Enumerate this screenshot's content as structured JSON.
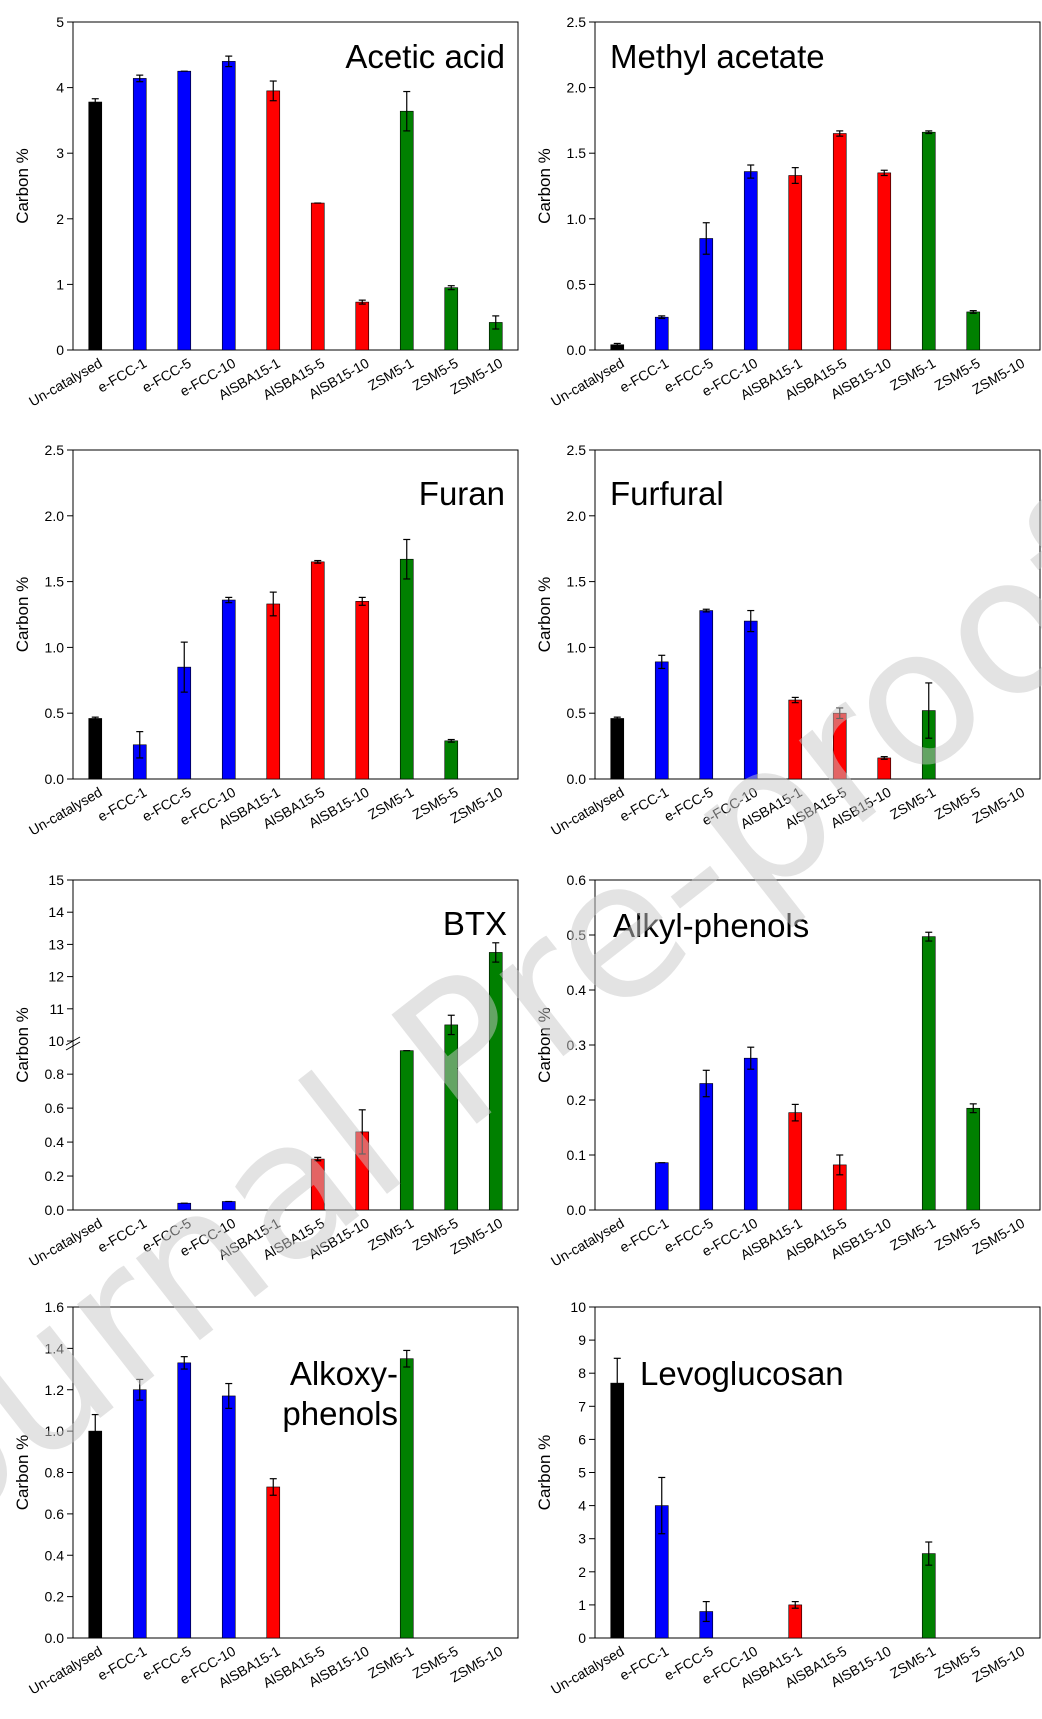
{
  "watermark": "Journal Pre-proof",
  "colors": {
    "uncatalysed": "#000000",
    "efcc": "#0000ff",
    "alsba": "#ff0000",
    "zsm5": "#008000"
  },
  "chart_data": [
    {
      "type": "bar",
      "title": "Acetic acid",
      "ylabel": "Carbon %",
      "categories": [
        "Un-catalysed",
        "e-FCC-1",
        "e-FCC-5",
        "e-FCC-10",
        "AlSBA15-1",
        "AlSBA15-5",
        "AlSB15-10",
        "ZSM5-1",
        "ZSM5-5",
        "ZSM5-10"
      ],
      "values": [
        3.78,
        4.14,
        4.25,
        4.4,
        3.95,
        2.24,
        0.73,
        3.64,
        0.95,
        0.42
      ],
      "errors": [
        0.05,
        0.05,
        0,
        0.08,
        0.15,
        0,
        0.03,
        0.3,
        0.03,
        0.1
      ],
      "ylim": [
        0,
        5
      ],
      "yticks": [
        "0",
        "1",
        "2",
        "3",
        "4",
        "5"
      ]
    },
    {
      "type": "bar",
      "title": "Methyl acetate",
      "ylabel": "Carbon %",
      "categories": [
        "Un-catalysed",
        "e-FCC-1",
        "e-FCC-5",
        "e-FCC-10",
        "AlSBA15-1",
        "AlSBA15-5",
        "AlSB15-10",
        "ZSM5-1",
        "ZSM5-5",
        "ZSM5-10"
      ],
      "values": [
        0.04,
        0.25,
        0.85,
        1.36,
        1.33,
        1.65,
        1.35,
        1.66,
        0.29,
        0
      ],
      "errors": [
        0.01,
        0.01,
        0.12,
        0.05,
        0.06,
        0.02,
        0.02,
        0.01,
        0.01,
        0
      ],
      "ylim": [
        0,
        2.5
      ],
      "yticks": [
        "0.0",
        "0.5",
        "1.0",
        "1.5",
        "2.0",
        "2.5"
      ]
    },
    {
      "type": "bar",
      "title": "Furan",
      "ylabel": "Carbon %",
      "categories": [
        "Un-catalysed",
        "e-FCC-1",
        "e-FCC-5",
        "e-FCC-10",
        "AlSBA15-1",
        "AlSBA15-5",
        "AlSB15-10",
        "ZSM5-1",
        "ZSM5-5",
        "ZSM5-10"
      ],
      "values": [
        0.46,
        0.26,
        0.85,
        1.36,
        1.33,
        1.65,
        1.35,
        1.67,
        0.29,
        0
      ],
      "errors": [
        0.01,
        0.1,
        0.19,
        0.02,
        0.09,
        0.01,
        0.03,
        0.15,
        0.01,
        0
      ],
      "ylim": [
        0,
        2.5
      ],
      "yticks": [
        "0.0",
        "0.5",
        "1.0",
        "1.5",
        "2.0",
        "2.5"
      ]
    },
    {
      "type": "bar",
      "title": "Furfural",
      "ylabel": "Carbon %",
      "categories": [
        "Un-catalysed",
        "e-FCC-1",
        "e-FCC-5",
        "e-FCC-10",
        "AlSBA15-1",
        "AlSBA15-5",
        "AlSB15-10",
        "ZSM5-1",
        "ZSM5-5",
        "ZSM5-10"
      ],
      "values": [
        0.46,
        0.89,
        1.28,
        1.2,
        0.6,
        0.5,
        0.16,
        0.52,
        0,
        0
      ],
      "errors": [
        0.01,
        0.05,
        0.01,
        0.08,
        0.02,
        0.04,
        0.01,
        0.21,
        0,
        0
      ],
      "ylim": [
        0,
        2.5
      ],
      "yticks": [
        "0.0",
        "0.5",
        "1.0",
        "1.5",
        "2.0",
        "2.5"
      ]
    },
    {
      "type": "bar",
      "title": "BTX",
      "ylabel": "Carbon %",
      "broken_axis": true,
      "categories": [
        "Un-catalysed",
        "e-FCC-1",
        "e-FCC-5",
        "e-FCC-10",
        "AlSBA15-1",
        "AlSBA15-5",
        "AlSB15-10",
        "ZSM5-1",
        "ZSM5-5",
        "ZSM5-10"
      ],
      "values": [
        0,
        0,
        0.04,
        0.05,
        0,
        0.3,
        0.46,
        9.7,
        10.5,
        12.75
      ],
      "errors": [
        0,
        0,
        0,
        0,
        0,
        0.01,
        0.13,
        0,
        0.3,
        0.3
      ],
      "ylim_lower": [
        0,
        0.96
      ],
      "yticks_lower": [
        "0.0",
        "0.2",
        "0.4",
        "0.6",
        "0.8"
      ],
      "ylim_upper": [
        10,
        15
      ],
      "yticks_upper": [
        "10",
        "11",
        "12",
        "13",
        "14",
        "15"
      ]
    },
    {
      "type": "bar",
      "title": "Alkyl-phenols",
      "ylabel": "Carbon %",
      "categories": [
        "Un-catalysed",
        "e-FCC-1",
        "e-FCC-5",
        "e-FCC-10",
        "AlSBA15-1",
        "AlSBA15-5",
        "AlSB15-10",
        "ZSM5-1",
        "ZSM5-5",
        "ZSM5-10"
      ],
      "values": [
        0,
        0.086,
        0.23,
        0.276,
        0.177,
        0.082,
        0,
        0.497,
        0.185,
        0
      ],
      "errors": [
        0,
        0,
        0.024,
        0.02,
        0.015,
        0.018,
        0,
        0.008,
        0.008,
        0
      ],
      "ylim": [
        0,
        0.6
      ],
      "yticks": [
        "0.0",
        "0.1",
        "0.2",
        "0.3",
        "0.4",
        "0.5",
        "0.6"
      ]
    },
    {
      "type": "bar",
      "title": "Alkoxy-\nphenols",
      "ylabel": "Carbon %",
      "categories": [
        "Un-catalysed",
        "e-FCC-1",
        "e-FCC-5",
        "e-FCC-10",
        "AlSBA15-1",
        "AlSBA15-5",
        "AlSB15-10",
        "ZSM5-1",
        "ZSM5-5",
        "ZSM5-10"
      ],
      "values": [
        1.0,
        1.2,
        1.33,
        1.17,
        0.73,
        0,
        0,
        1.35,
        0,
        0
      ],
      "errors": [
        0.08,
        0.05,
        0.03,
        0.06,
        0.04,
        0,
        0,
        0.04,
        0,
        0
      ],
      "ylim": [
        0,
        1.6
      ],
      "yticks": [
        "0.0",
        "0.2",
        "0.4",
        "0.6",
        "0.8",
        "1.0",
        "1.2",
        "1.4",
        "1.6"
      ]
    },
    {
      "type": "bar",
      "title": "Levoglucosan",
      "ylabel": "Carbon %",
      "categories": [
        "Un-catalysed",
        "e-FCC-1",
        "e-FCC-5",
        "e-FCC-10",
        "AlSBA15-1",
        "AlSBA15-5",
        "AlSB15-10",
        "ZSM5-1",
        "ZSM5-5",
        "ZSM5-10"
      ],
      "values": [
        7.7,
        4.0,
        0.8,
        0,
        1.0,
        0,
        0,
        2.55,
        0,
        0
      ],
      "errors": [
        0.75,
        0.85,
        0.3,
        0,
        0.1,
        0,
        0,
        0.35,
        0,
        0
      ],
      "ylim": [
        0,
        10
      ],
      "yticks": [
        "0",
        "1",
        "2",
        "3",
        "4",
        "5",
        "6",
        "7",
        "8",
        "9",
        "10"
      ]
    }
  ]
}
